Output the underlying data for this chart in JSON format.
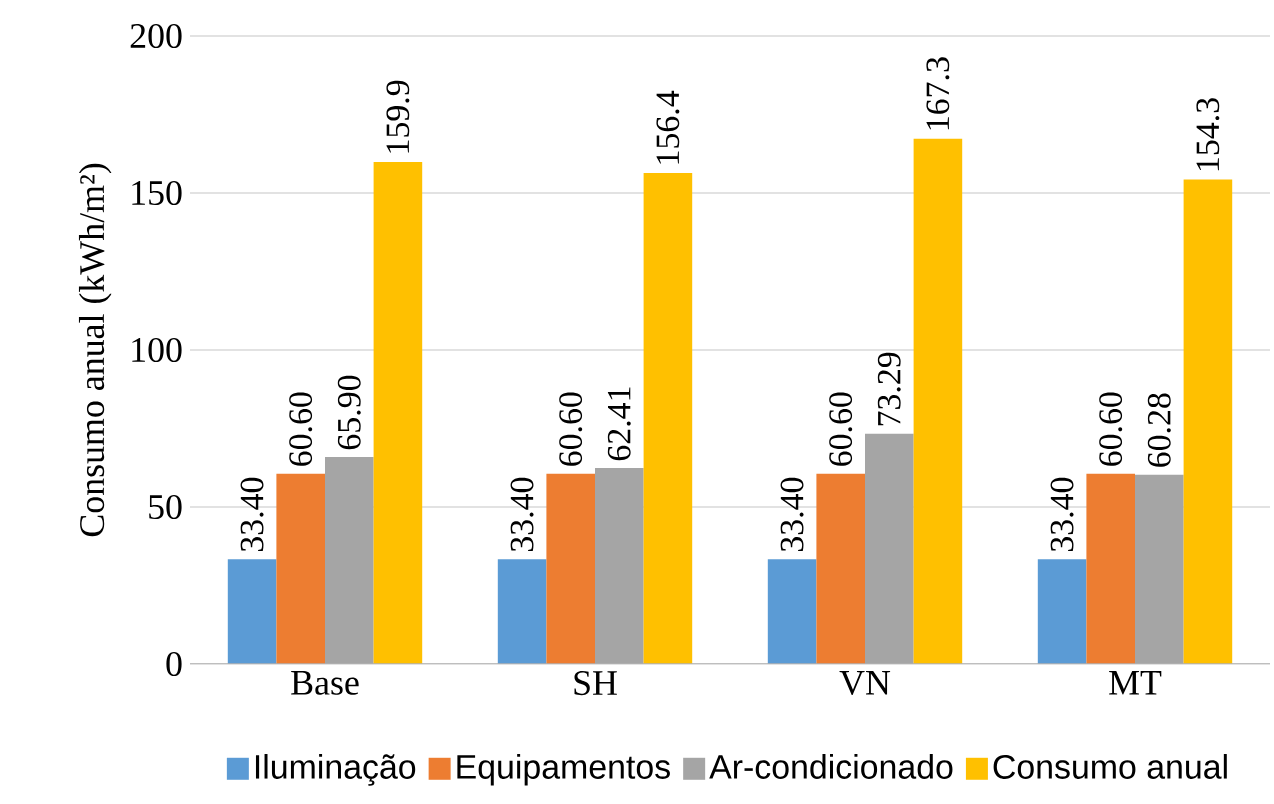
{
  "chart_data": {
    "type": "bar",
    "ylabel": "Consumo anual (kWh/m²)",
    "categories": [
      "Base",
      "SH",
      "VN",
      "MT"
    ],
    "series": [
      {
        "name": "Iluminação",
        "color": "#5b9bd5",
        "values": [
          33.4,
          33.4,
          33.4,
          33.4
        ],
        "value_labels": [
          "33.40",
          "33.40",
          "33.40",
          "33.40"
        ]
      },
      {
        "name": "Equipamentos",
        "color": "#ed7d31",
        "values": [
          60.6,
          60.6,
          60.6,
          60.6
        ],
        "value_labels": [
          "60.60",
          "60.60",
          "60.60",
          "60.60"
        ]
      },
      {
        "name": "Ar-condicionado",
        "color": "#a5a5a5",
        "values": [
          65.9,
          62.41,
          73.29,
          60.28
        ],
        "value_labels": [
          "65.90",
          "62.41",
          "73.29",
          "60.28"
        ]
      },
      {
        "name": "Consumo anual",
        "color": "#ffc000",
        "values": [
          159.9,
          156.4,
          167.3,
          154.3
        ],
        "value_labels": [
          "159.9",
          "156.4",
          "167.3",
          "154.3"
        ]
      }
    ],
    "ylim": [
      0,
      200
    ],
    "yticks": [
      0,
      50,
      100,
      150,
      200
    ],
    "grid": "y",
    "legend": "bottom"
  }
}
